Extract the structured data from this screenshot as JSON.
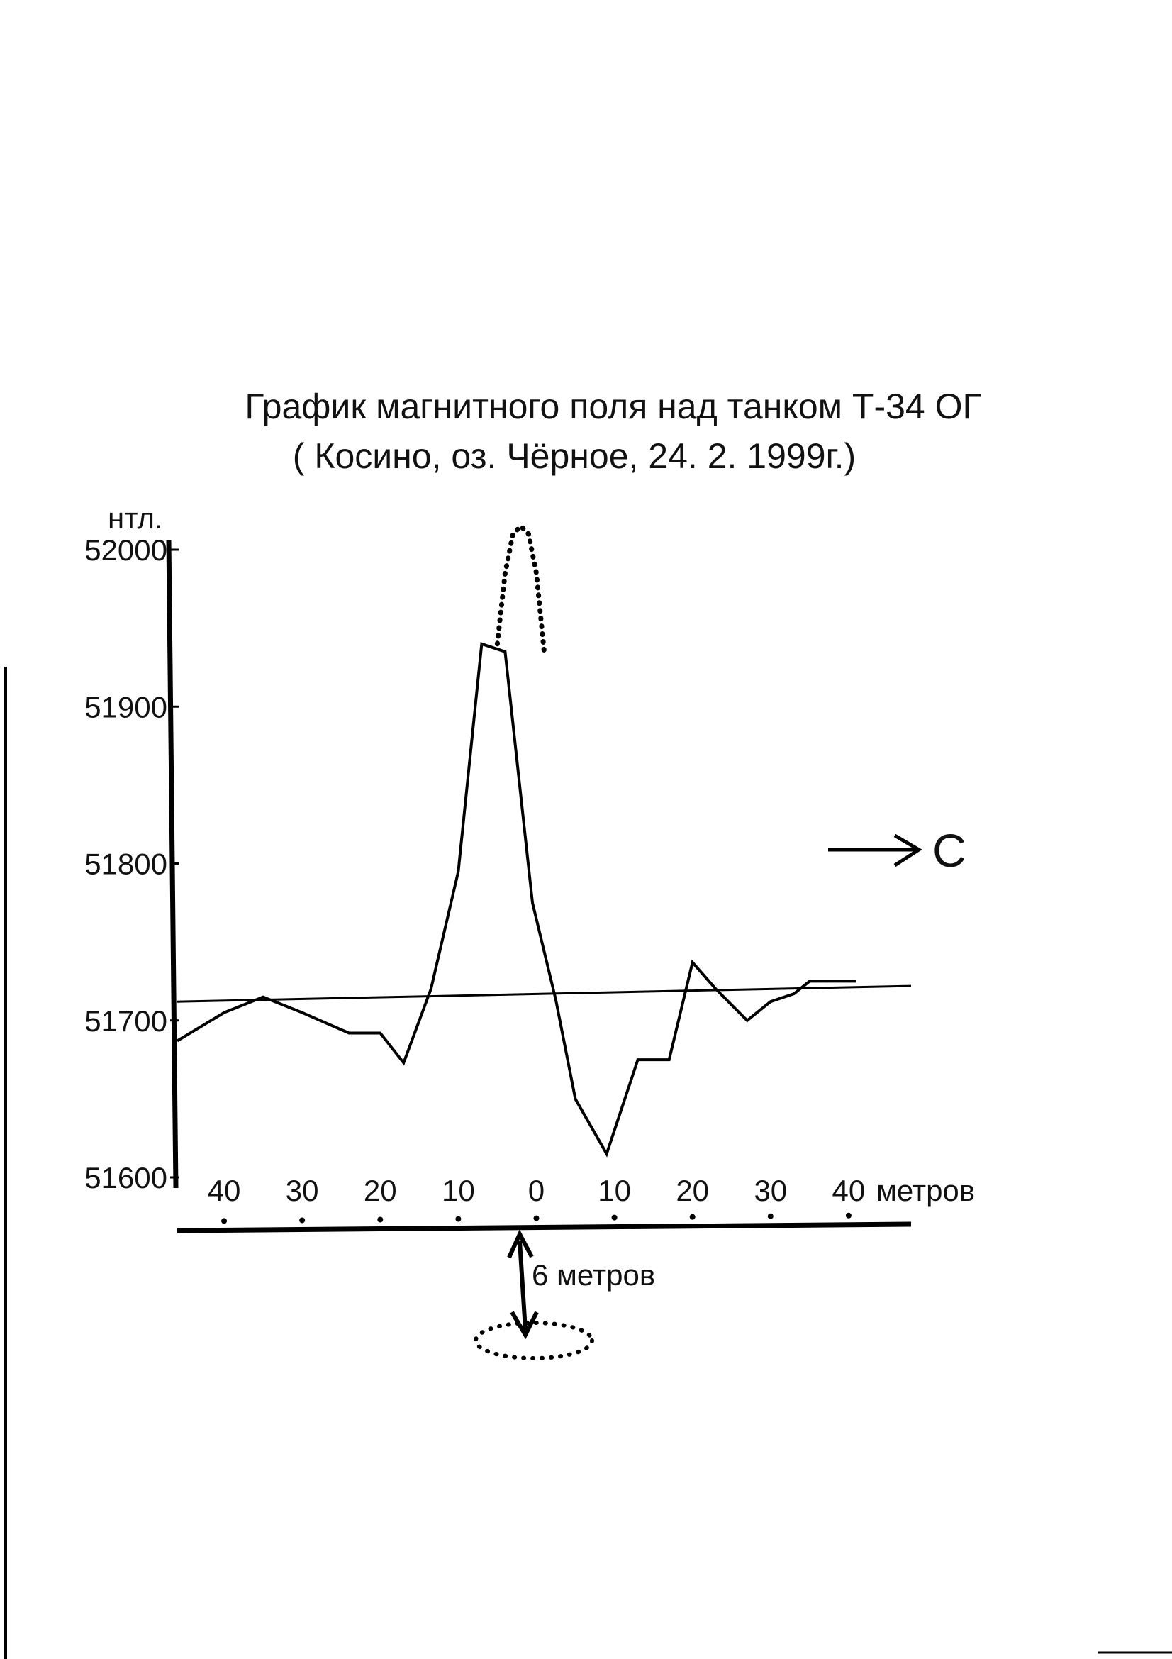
{
  "chart_data": {
    "type": "line",
    "title": "График магнитного поля над танком Т-34 ОГ",
    "subtitle": "( Косино, оз. Чёрное, 24. 2. 1999г.)",
    "ylabel": "нтл.",
    "xlabel": "метров",
    "ylim": [
      51600,
      52000
    ],
    "xlim": [
      -46,
      48
    ],
    "y_ticks": [
      {
        "value": 51600,
        "label": "51600"
      },
      {
        "value": 51700,
        "label": "51700"
      },
      {
        "value": 51800,
        "label": "51800"
      },
      {
        "value": 51900,
        "label": "51900"
      },
      {
        "value": 52000,
        "label": "52000"
      }
    ],
    "x_ticks": [
      {
        "value": -40,
        "label": "40"
      },
      {
        "value": -30,
        "label": "30"
      },
      {
        "value": -20,
        "label": "20"
      },
      {
        "value": -10,
        "label": "10"
      },
      {
        "value": 0,
        "label": "0"
      },
      {
        "value": 10,
        "label": "10"
      },
      {
        "value": 20,
        "label": "20"
      },
      {
        "value": 30,
        "label": "30"
      },
      {
        "value": 40,
        "label": "40"
      }
    ],
    "series": [
      {
        "x": [
          -46,
          -40,
          -35,
          -30,
          -24,
          -20,
          -17,
          -13.5,
          -10,
          -7,
          -4,
          -0.5,
          2.5,
          5,
          9,
          13,
          17,
          20,
          23,
          27,
          30,
          33,
          35,
          38,
          41
        ],
        "y": [
          51687,
          51705,
          51715,
          51705,
          51692,
          51692,
          51673,
          51720,
          51795,
          51940,
          51935,
          51775,
          51713,
          51650,
          51615,
          51675,
          51675,
          51737,
          51720,
          51700,
          51712,
          51717,
          51725,
          51725,
          51725
        ]
      }
    ],
    "peak_estimate": {
      "x": [
        -5,
        -4,
        -3,
        -2,
        -1,
        0,
        1
      ],
      "y": [
        51940,
        51985,
        52010,
        52015,
        52010,
        51985,
        51935
      ]
    },
    "trend_line": {
      "x": [
        -46,
        48
      ],
      "y": [
        51712,
        51722
      ]
    },
    "depth_label": "6 метров",
    "direction_label": "С"
  }
}
